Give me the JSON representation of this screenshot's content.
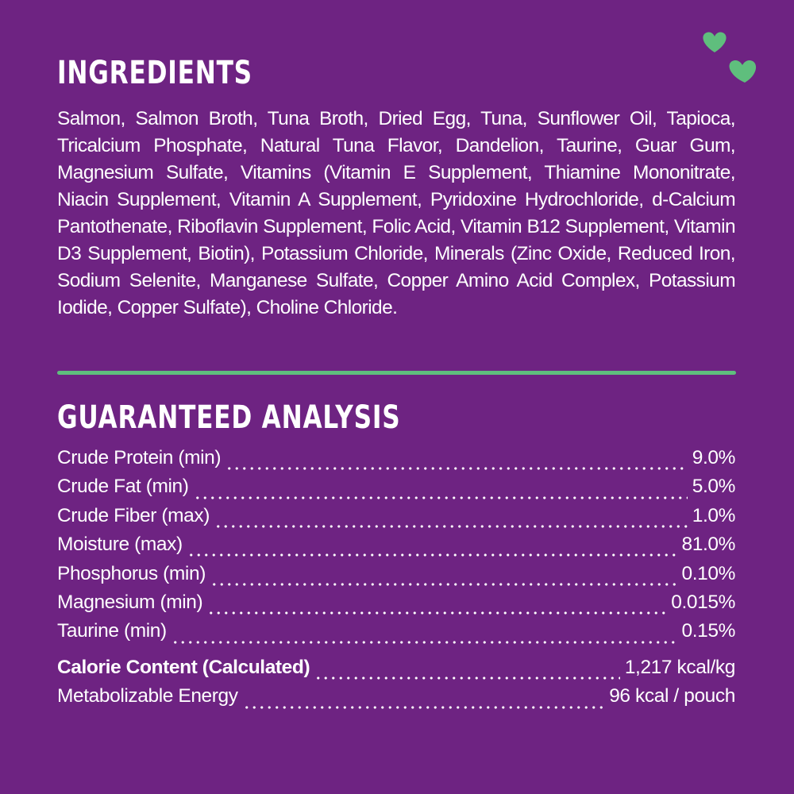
{
  "ingredients": {
    "title": "INGREDIENTS",
    "text": "Salmon, Salmon Broth, Tuna Broth, Dried Egg, Tuna, Sunflower Oil, Tapioca, Tricalcium Phosphate, Natural Tuna Flavor, Dandelion, Taurine, Guar Gum, Magnesium Sulfate, Vitamins (Vitamin E Supplement, Thiamine Mononitrate, Niacin Supplement, Vitamin A Supplement, Pyridoxine Hydrochloride, d-Calcium Pantothenate, Riboflavin Supplement, Folic Acid, Vitamin B12 Supplement, Vitamin D3 Supplement, Biotin), Potassium Chloride, Minerals (Zinc Oxide, Reduced Iron, Sodium Selenite, Manganese Sulfate, Copper Amino Acid Complex, Potassium Iodide, Copper Sulfate), Choline Chloride."
  },
  "guaranteed_analysis": {
    "title": "GUARANTEED ANALYSIS",
    "rows": [
      {
        "label": "Crude Protein (min)",
        "value": "9.0%"
      },
      {
        "label": "Crude Fat (min)",
        "value": "5.0%"
      },
      {
        "label": "Crude Fiber (max)",
        "value": "1.0%"
      },
      {
        "label": "Moisture (max)",
        "value": "81.0%"
      },
      {
        "label": "Phosphorus (min)",
        "value": "0.10%"
      },
      {
        "label": "Magnesium (min)",
        "value": "0.015%"
      },
      {
        "label": "Taurine (min)",
        "value": "0.15%"
      }
    ]
  },
  "calorie_content": {
    "rows": [
      {
        "label": "Calorie Content (Calculated)",
        "value": "1,217 kcal/kg"
      },
      {
        "label": "Metabolizable Energy",
        "value": "96 kcal / pouch"
      }
    ]
  }
}
